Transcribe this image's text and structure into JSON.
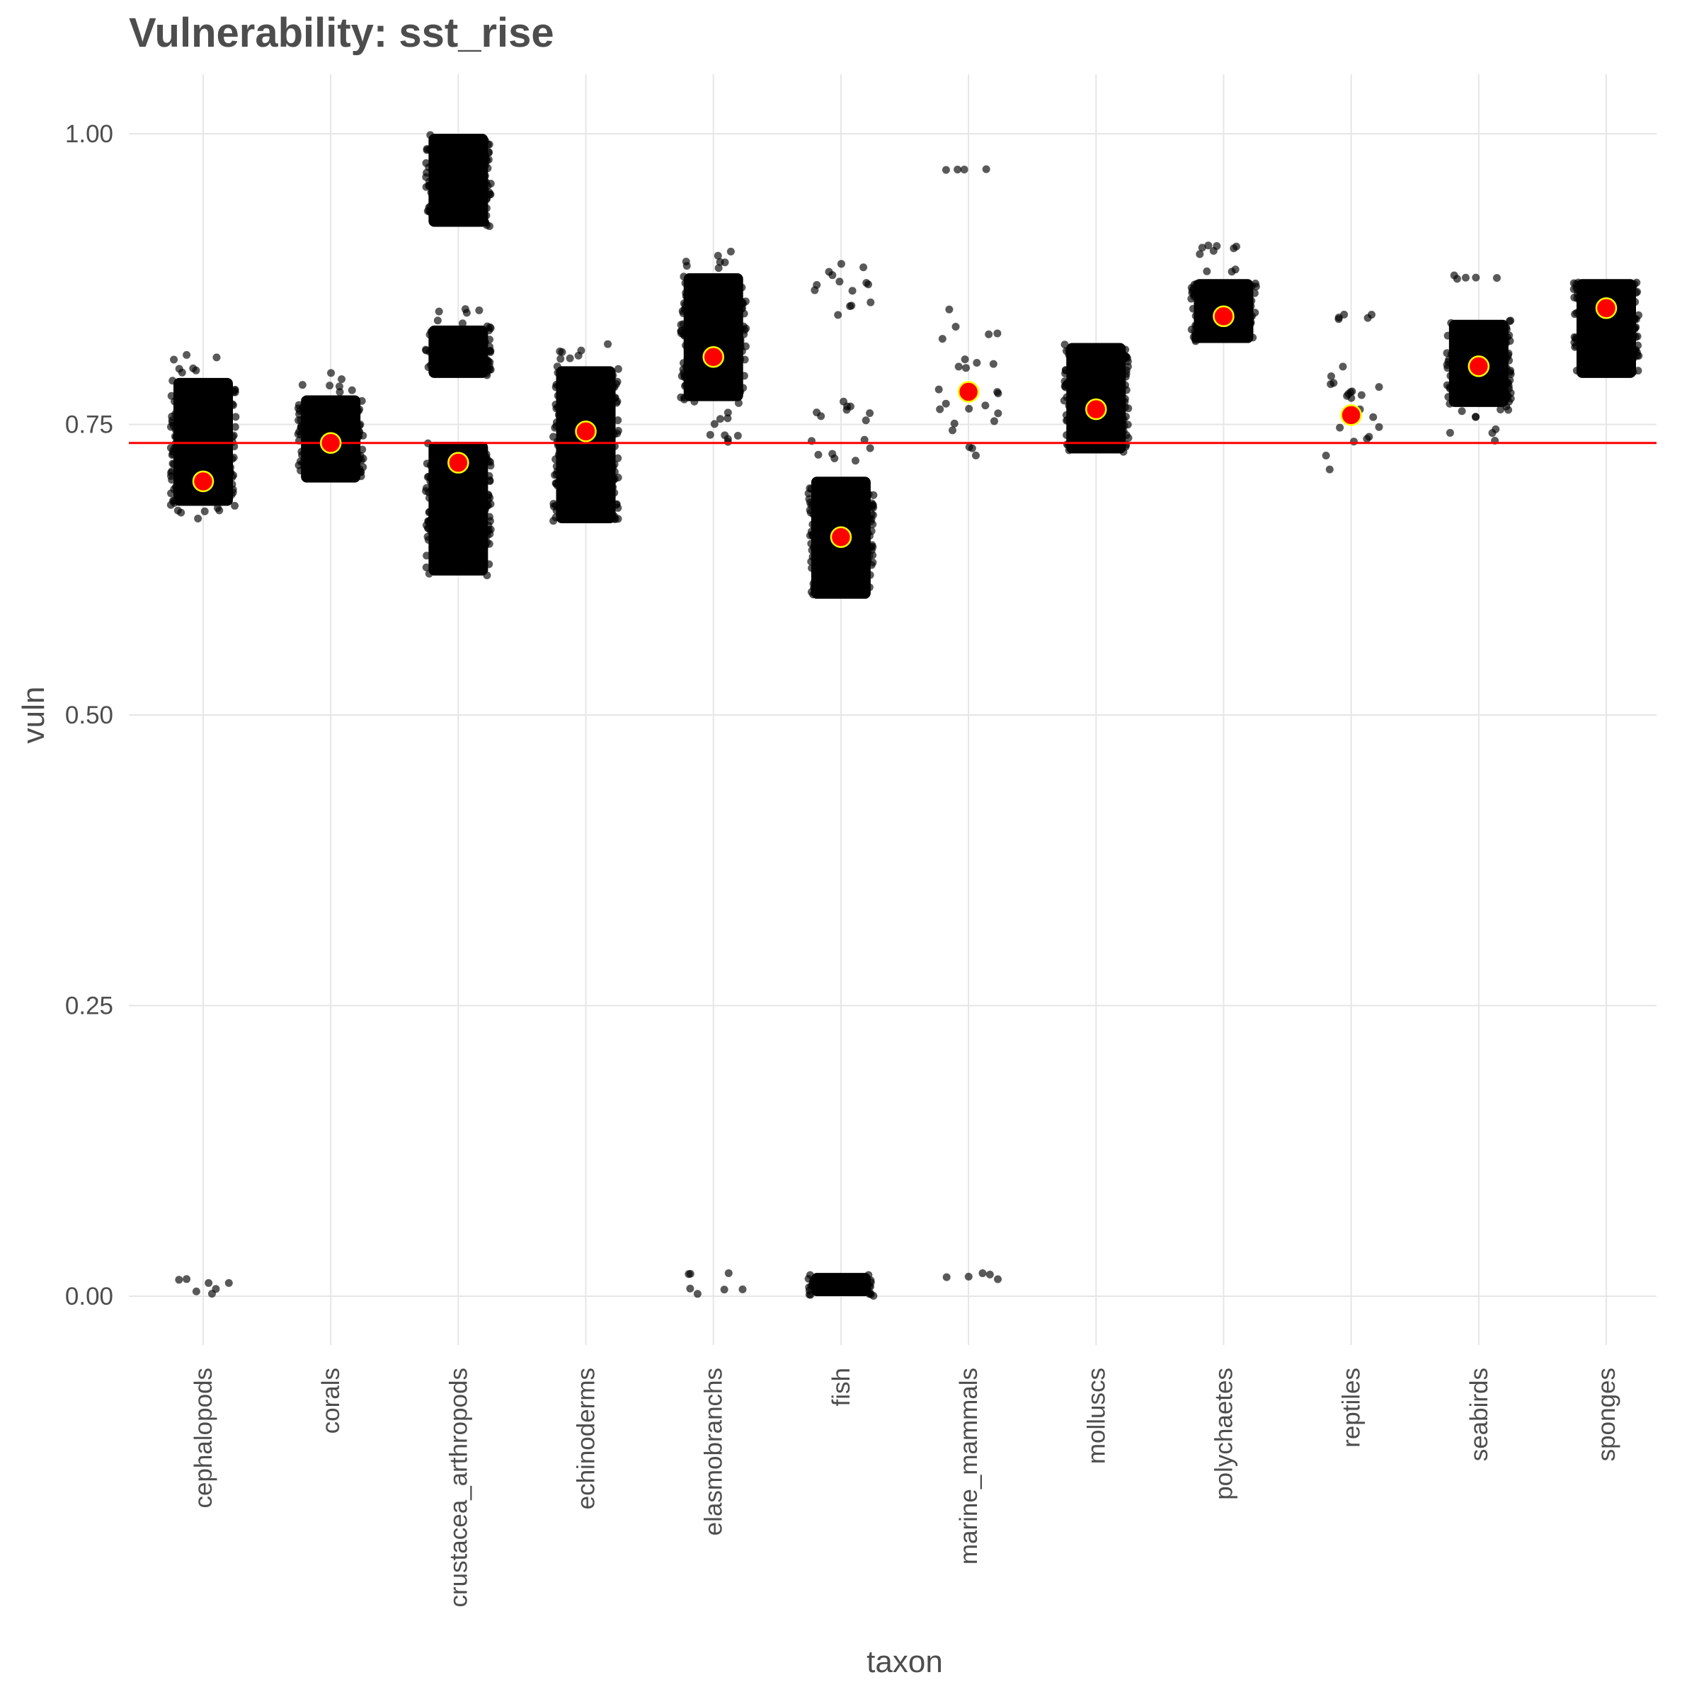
{
  "chart_data": {
    "type": "scatter",
    "title": "Vulnerability: sst_rise",
    "xlabel": "taxon",
    "ylabel": "vuln",
    "ylim": [
      -0.05,
      1.05
    ],
    "yticks": [
      0.0,
      0.25,
      0.5,
      0.75,
      1.0
    ],
    "ytick_labels": [
      "0.00",
      "0.25",
      "0.50",
      "0.75",
      "1.00"
    ],
    "categories": [
      "cephalopods",
      "corals",
      "crustacea_arthropods",
      "echinoderms",
      "elasmobranchs",
      "fish",
      "marine_mammals",
      "molluscs",
      "polychaetes",
      "reptiles",
      "seabirds",
      "sponges"
    ],
    "grid": true,
    "legend": "none",
    "reference_line": {
      "y": 0.734,
      "color": "#ff0000"
    },
    "means": [
      {
        "taxon": "cephalopods",
        "y": 0.701
      },
      {
        "taxon": "corals",
        "y": 0.734
      },
      {
        "taxon": "crustacea_arthropods",
        "y": 0.717
      },
      {
        "taxon": "echinoderms",
        "y": 0.744
      },
      {
        "taxon": "elasmobranchs",
        "y": 0.808
      },
      {
        "taxon": "fish",
        "y": 0.653
      },
      {
        "taxon": "marine_mammals",
        "y": 0.778
      },
      {
        "taxon": "molluscs",
        "y": 0.763
      },
      {
        "taxon": "polychaetes",
        "y": 0.843
      },
      {
        "taxon": "reptiles",
        "y": 0.758
      },
      {
        "taxon": "seabirds",
        "y": 0.8
      },
      {
        "taxon": "sponges",
        "y": 0.85
      }
    ],
    "point_groups": [
      {
        "taxon": "cephalopods",
        "clusters": [
          {
            "ymin": 0.68,
            "ymax": 0.79,
            "density": "dense"
          },
          {
            "ymin": 0.79,
            "ymax": 0.81,
            "density": "sparse"
          },
          {
            "ymin": 0.665,
            "ymax": 0.68,
            "density": "sparse"
          },
          {
            "ymin": 0.002,
            "ymax": 0.018,
            "density": "sparse"
          }
        ]
      },
      {
        "taxon": "corals",
        "clusters": [
          {
            "ymin": 0.7,
            "ymax": 0.775,
            "density": "dense"
          },
          {
            "ymin": 0.775,
            "ymax": 0.795,
            "density": "sparse"
          }
        ]
      },
      {
        "taxon": "crustacea_arthropods",
        "clusters": [
          {
            "ymin": 0.92,
            "ymax": 1.0,
            "density": "dense"
          },
          {
            "ymin": 0.79,
            "ymax": 0.835,
            "density": "dense"
          },
          {
            "ymin": 0.835,
            "ymax": 0.85,
            "density": "sparse"
          },
          {
            "ymin": 0.62,
            "ymax": 0.735,
            "density": "dense"
          }
        ]
      },
      {
        "taxon": "echinoderms",
        "clusters": [
          {
            "ymin": 0.665,
            "ymax": 0.8,
            "density": "dense"
          },
          {
            "ymin": 0.8,
            "ymax": 0.82,
            "density": "sparse"
          }
        ]
      },
      {
        "taxon": "elasmobranchs",
        "clusters": [
          {
            "ymin": 0.77,
            "ymax": 0.88,
            "density": "dense"
          },
          {
            "ymin": 0.88,
            "ymax": 0.9,
            "density": "sparse"
          },
          {
            "ymin": 0.73,
            "ymax": 0.77,
            "density": "sparse"
          },
          {
            "ymin": 0.002,
            "ymax": 0.02,
            "density": "sparse"
          }
        ]
      },
      {
        "taxon": "fish",
        "clusters": [
          {
            "ymin": 0.6,
            "ymax": 0.705,
            "density": "dense"
          },
          {
            "ymin": 0.705,
            "ymax": 0.77,
            "density": "sparse"
          },
          {
            "ymin": 0.84,
            "ymax": 0.9,
            "density": "sparse"
          },
          {
            "ymin": 0.0,
            "ymax": 0.02,
            "density": "dense"
          }
        ]
      },
      {
        "taxon": "marine_mammals",
        "clusters": [
          {
            "ymin": 0.72,
            "ymax": 0.85,
            "density": "sparse"
          },
          {
            "ymin": 0.97,
            "ymax": 0.97,
            "density": "sparse"
          },
          {
            "ymin": 0.014,
            "ymax": 0.02,
            "density": "sparse"
          }
        ]
      },
      {
        "taxon": "molluscs",
        "clusters": [
          {
            "ymin": 0.725,
            "ymax": 0.82,
            "density": "dense"
          }
        ]
      },
      {
        "taxon": "polychaetes",
        "clusters": [
          {
            "ymin": 0.82,
            "ymax": 0.875,
            "density": "dense"
          },
          {
            "ymin": 0.875,
            "ymax": 0.91,
            "density": "sparse"
          }
        ]
      },
      {
        "taxon": "reptiles",
        "clusters": [
          {
            "ymin": 0.705,
            "ymax": 0.81,
            "density": "sparse"
          },
          {
            "ymin": 0.84,
            "ymax": 0.845,
            "density": "sparse"
          }
        ]
      },
      {
        "taxon": "seabirds",
        "clusters": [
          {
            "ymin": 0.765,
            "ymax": 0.84,
            "density": "dense"
          },
          {
            "ymin": 0.735,
            "ymax": 0.765,
            "density": "sparse"
          },
          {
            "ymin": 0.875,
            "ymax": 0.88,
            "density": "sparse"
          }
        ]
      },
      {
        "taxon": "sponges",
        "clusters": [
          {
            "ymin": 0.79,
            "ymax": 0.875,
            "density": "dense"
          }
        ]
      }
    ]
  }
}
